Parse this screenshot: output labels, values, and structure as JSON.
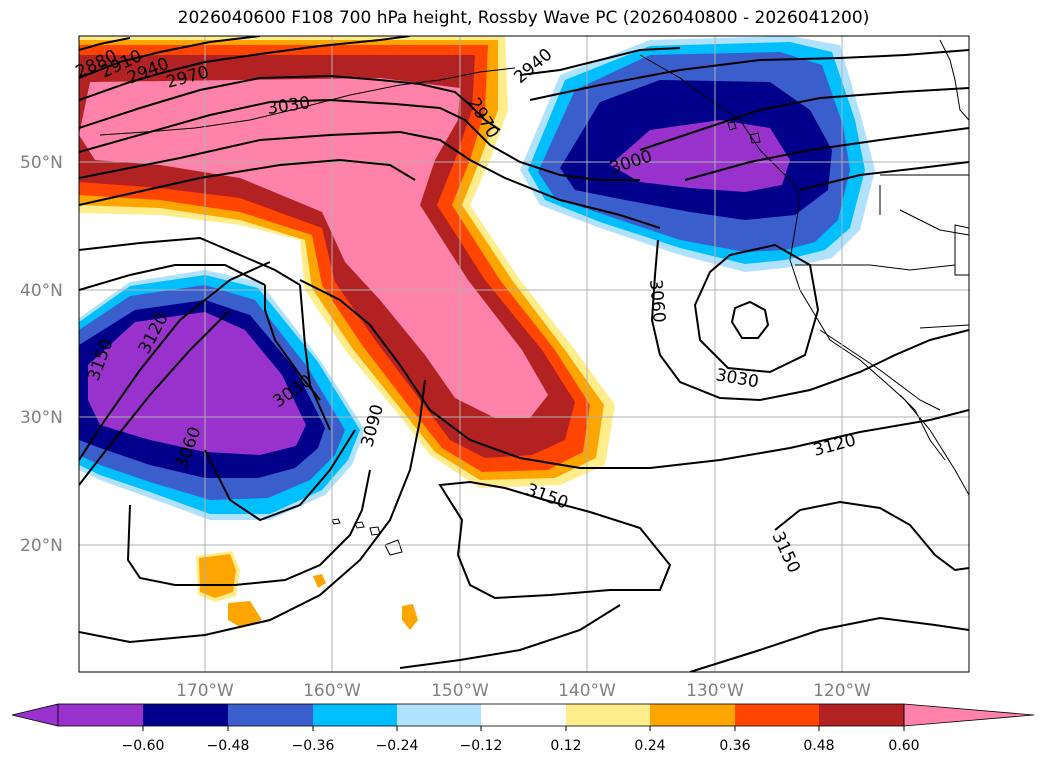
{
  "title": "2026040600 F108 700 hPa height, Rossby Wave PC (2026040800 - 2026041200)",
  "latitude_labels": [
    "50°N",
    "40°N",
    "30°N",
    "20°N"
  ],
  "longitude_labels": [
    "170°W",
    "160°W",
    "150°W",
    "140°W",
    "130°W",
    "120°W"
  ],
  "contour_labels": [
    "2880",
    "2910",
    "2940",
    "2970",
    "3030",
    "2940",
    "2970",
    "3000",
    "3060",
    "3030",
    "3120",
    "3150",
    "3060",
    "3090",
    "3030",
    "3150",
    "3120",
    "3150"
  ],
  "colorbar": {
    "ticks": [
      "−0.60",
      "−0.48",
      "−0.36",
      "−0.24",
      "−0.12",
      "0.12",
      "0.24",
      "0.36",
      "0.48",
      "0.60"
    ],
    "colors": [
      "#9932CC",
      "#00008B",
      "#3A5FCD",
      "#00BFFF",
      "#B0E2FF",
      "#FFFFFF",
      "#FFEC8B",
      "#FFA500",
      "#FF4500",
      "#B22222",
      "#FF82AB"
    ]
  }
}
